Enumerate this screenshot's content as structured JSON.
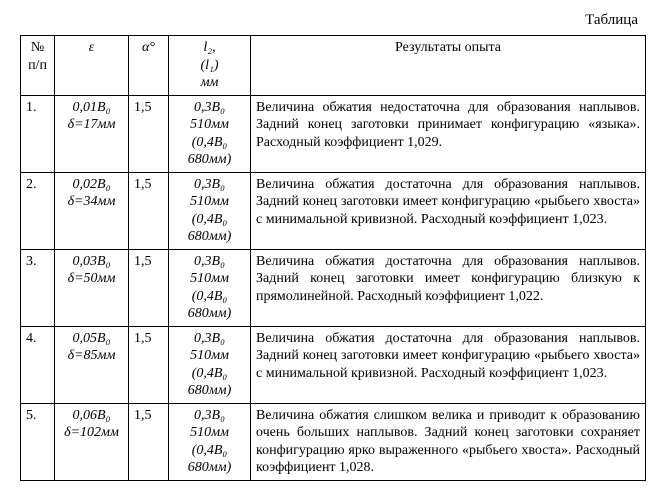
{
  "caption": "Таблица",
  "headers": {
    "num": "№ п/п",
    "eps": "ε",
    "alpha": "α°",
    "l_top": "l₂,",
    "l_mid": "(l₁)",
    "l_bot": "мм",
    "res": "Результаты опыта"
  },
  "rows": [
    {
      "n": "1.",
      "eps1": "0,01B₀",
      "eps2": "δ=17мм",
      "alpha": "1,5",
      "l1": "0,3B₀",
      "l2": "510мм",
      "l3": "(0,4B₀",
      "l4": "680мм)",
      "res": "Величина обжатия недостаточна для образования наплывов. Задний конец заготовки принимает конфигурацию «языка». Расходный коэффициент 1,029."
    },
    {
      "n": "2.",
      "eps1": "0,02B₀",
      "eps2": "δ=34мм",
      "alpha": "1,5",
      "l1": "0,3B₀",
      "l2": "510мм",
      "l3": "(0,4B₀",
      "l4": "680мм)",
      "res": "Величина обжатия достаточна для образования наплывов. Задний конец заготовки имеет конфигурацию «рыбьего хвоста» с минимальной кривизной. Расходный коэффициент 1,023."
    },
    {
      "n": "3.",
      "eps1": "0,03B₀",
      "eps2": "δ=50мм",
      "alpha": "1,5",
      "l1": "0,3B₀",
      "l2": "510мм",
      "l3": "(0,4B₀",
      "l4": "680мм)",
      "res": "Величина обжатия достаточна для образования наплывов. Задний конец заготовки имеет конфигурацию близкую к прямолинейной. Расходный коэффициент 1,022."
    },
    {
      "n": "4.",
      "eps1": "0,05B₀",
      "eps2": "δ=85мм",
      "alpha": "1,5",
      "l1": "0,3B₀",
      "l2": "510мм",
      "l3": "(0,4B₀",
      "l4": "680мм)",
      "res": "Величина обжатия достаточна для образования наплывов. Задний конец заготовки имеет конфигурацию «рыбьего хвоста» с минимальной кривизной. Расходный коэффициент 1,023."
    },
    {
      "n": "5.",
      "eps1": "0,06B₀",
      "eps2": "δ=102мм",
      "alpha": "1,5",
      "l1": "0,3B₀",
      "l2": "510мм",
      "l3": "(0,4B₀",
      "l4": "680мм)",
      "res": "Величина обжатия слишком велика и приводит к образованию очень больших наплывов. Задний конец заготовки сохраняет конфигурацию ярко выраженного «рыбьего хвоста». Расходный коэффициент 1,028."
    }
  ]
}
